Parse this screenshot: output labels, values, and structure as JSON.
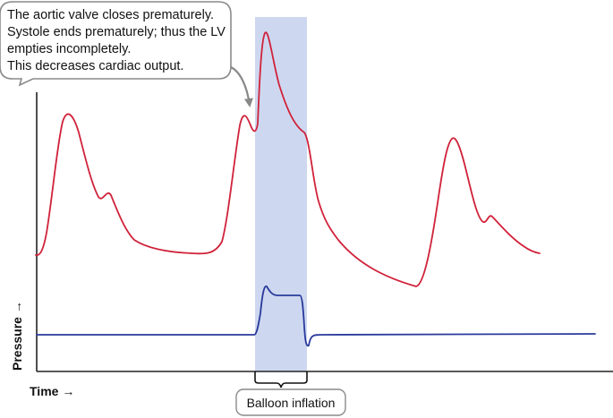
{
  "callout": {
    "lines": [
      "The aortic valve closes prematurely.",
      "Systole ends prematurely; thus the LV",
      "empties incompletely.",
      "This decreases cardiac output."
    ]
  },
  "axes": {
    "y_label": "Pressure →",
    "x_label": "Time →"
  },
  "balloon_label": "Balloon inflation",
  "colors": {
    "pressure_curve": "#d0223a",
    "balloon_curve": "#2a3a9c",
    "highlight": "#cdd8f0",
    "axis": "#222222",
    "callout_border": "#8a8a8a"
  }
}
